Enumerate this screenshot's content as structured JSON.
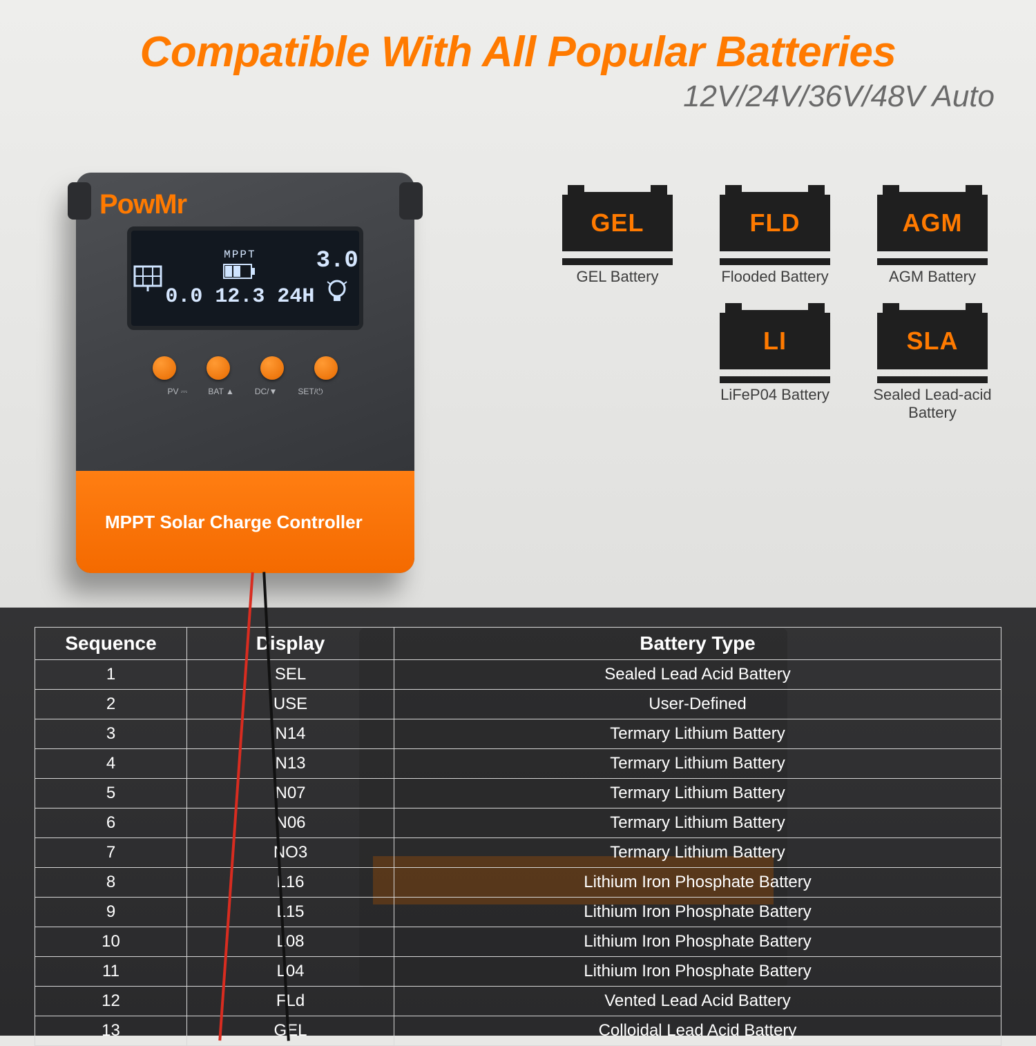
{
  "headline": "Compatible With All Popular Batteries",
  "subhead": "12V/24V/36V/48V Auto",
  "device": {
    "brand": "PowMr",
    "lcd": {
      "mppt": "MPPT",
      "v1": "0.0",
      "v2": "12.3",
      "v3": "24H",
      "corner": "3.0"
    },
    "button_labels": [
      "PV ⎓",
      "BAT ▲",
      "DC/▼",
      "SET/⏻"
    ],
    "foot": "MPPT Solar Charge Controller"
  },
  "batteries": [
    {
      "code": "GEL",
      "label": "GEL Battery"
    },
    {
      "code": "FLD",
      "label": "Flooded Battery"
    },
    {
      "code": "AGM",
      "label": "AGM Battery"
    },
    {
      "code": "LI",
      "label": "LiFeP04 Battery"
    },
    {
      "code": "SLA",
      "label": "Sealed Lead-acid Battery"
    }
  ],
  "table": {
    "columns": [
      "Sequence",
      "Display",
      "Battery Type"
    ],
    "rows": [
      [
        "1",
        "SEL",
        "Sealed Lead Acid Battery"
      ],
      [
        "2",
        "USE",
        "User-Defined"
      ],
      [
        "3",
        "N14",
        "Termary Lithium Battery"
      ],
      [
        "4",
        "N13",
        "Termary Lithium Battery"
      ],
      [
        "5",
        "N07",
        "Termary Lithium Battery"
      ],
      [
        "6",
        "N06",
        "Termary Lithium Battery"
      ],
      [
        "7",
        "NO3",
        "Termary Lithium Battery"
      ],
      [
        "8",
        "L16",
        "Lithium Iron Phosphate Battery"
      ],
      [
        "9",
        "L15",
        "Lithium Iron Phosphate Battery"
      ],
      [
        "10",
        "L08",
        "Lithium Iron Phosphate Battery"
      ],
      [
        "11",
        "L04",
        "Lithium Iron Phosphate Battery"
      ],
      [
        "12",
        "FLd",
        "Vented Lead Acid Battery"
      ],
      [
        "13",
        "GEL",
        "Colloidal Lead Acid Battery"
      ]
    ]
  },
  "colors": {
    "accent": "#ff7a00",
    "device_dark": "#2e3034",
    "lcd_bg": "#121820",
    "table_border": "#d8d8d8"
  }
}
